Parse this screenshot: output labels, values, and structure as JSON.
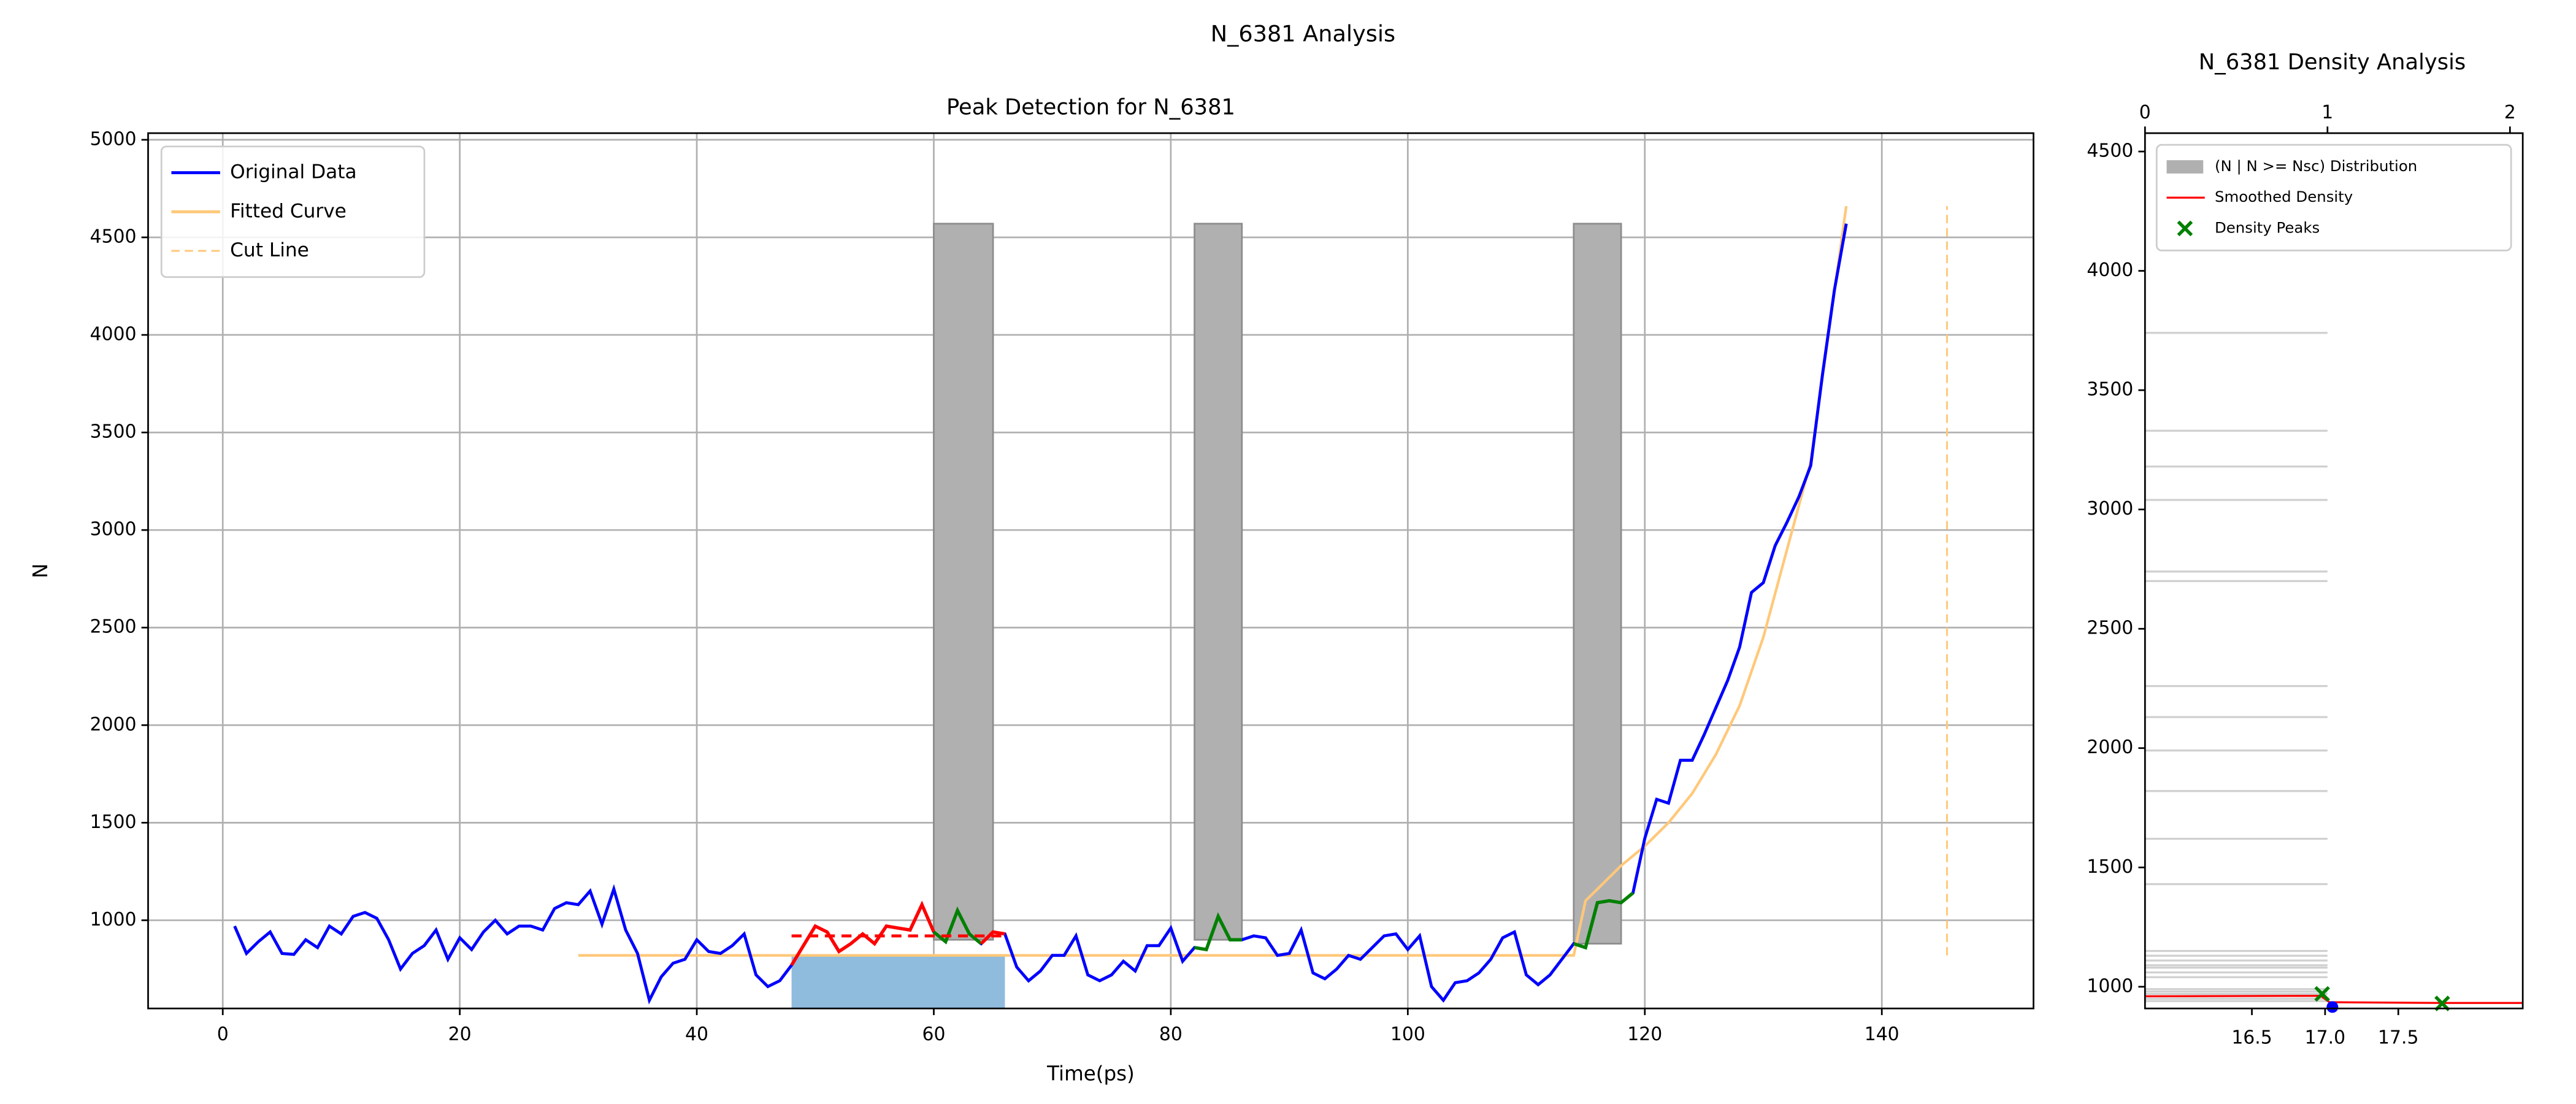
{
  "title": "N_6381 Analysis",
  "chart_data": [
    {
      "type": "line",
      "title": "Peak Detection for N_6381",
      "xlabel": "Time(ps)",
      "ylabel": "N",
      "xlim": [
        -6.3,
        152.8
      ],
      "ylim": [
        548,
        5034
      ],
      "xticks": [
        0,
        20,
        40,
        60,
        80,
        100,
        120,
        140
      ],
      "yticks": [
        1000,
        1500,
        2000,
        2500,
        3000,
        3500,
        4000,
        4500,
        5000
      ],
      "grid": true,
      "legend": "upper left",
      "series": [
        {
          "name": "Original Data",
          "color": "#0000ff",
          "style": "solid",
          "x": [
            1,
            2,
            3,
            4,
            5,
            6,
            7,
            8,
            9,
            10,
            11,
            12,
            13,
            14,
            15,
            16,
            17,
            18,
            19,
            20,
            21,
            22,
            23,
            24,
            25,
            26,
            27,
            28,
            29,
            30,
            31,
            32,
            33,
            34,
            35,
            36,
            37,
            38,
            39,
            40,
            41,
            42,
            43,
            44,
            45,
            46,
            47,
            48,
            49,
            50,
            51,
            52,
            53,
            54,
            55,
            56,
            57,
            58,
            59,
            60,
            61,
            62,
            63,
            64,
            65,
            66,
            67,
            68,
            69,
            70,
            71,
            72,
            73,
            74,
            75,
            76,
            77,
            78,
            79,
            80,
            81,
            82,
            83,
            84,
            85,
            86,
            87,
            88,
            89,
            90,
            91,
            92,
            93,
            94,
            95,
            96,
            97,
            98,
            99,
            100,
            101,
            102,
            103,
            104,
            105,
            106,
            107,
            108,
            109,
            110,
            111,
            112,
            113,
            114,
            115,
            116,
            117,
            118,
            119,
            120,
            121,
            122,
            123,
            124,
            125,
            126,
            127,
            128,
            129,
            130,
            131,
            132,
            133,
            134,
            135,
            136,
            137
          ],
          "values": [
            970,
            830,
            890,
            940,
            830,
            825,
            900,
            860,
            970,
            930,
            1020,
            1040,
            1010,
            900,
            750,
            830,
            870,
            950,
            800,
            910,
            850,
            940,
            1000,
            930,
            970,
            970,
            950,
            1060,
            1090,
            1080,
            1150,
            980,
            1160,
            950,
            830,
            590,
            710,
            780,
            800,
            900,
            840,
            830,
            870,
            930,
            720,
            660,
            690,
            770,
            870,
            970,
            940,
            840,
            880,
            930,
            880,
            970,
            960,
            950,
            1080,
            940,
            890,
            1050,
            930,
            880,
            940,
            930,
            760,
            690,
            740,
            820,
            820,
            920,
            720,
            690,
            720,
            790,
            740,
            870,
            870,
            960,
            790,
            860,
            850,
            1020,
            900,
            900,
            920,
            910,
            820,
            830,
            950,
            730,
            700,
            750,
            820,
            800,
            860,
            920,
            930,
            850,
            920,
            660,
            590,
            680,
            690,
            730,
            800,
            910,
            940,
            720,
            670,
            720,
            800,
            880,
            860,
            1090,
            1100,
            1090,
            1140,
            1420,
            1620,
            1600,
            1820,
            1820,
            1950,
            2090,
            2230,
            2400,
            2680,
            2730,
            2920,
            3040,
            3170,
            3330,
            3800,
            4230,
            4570
          ]
        },
        {
          "name": "Fitted Curve",
          "color": "#ffc87a",
          "style": "solid",
          "x": [
            30,
            114,
            115,
            116,
            118,
            120,
            122,
            124,
            126,
            128,
            130,
            132,
            134,
            137
          ],
          "values": [
            820,
            820,
            1100,
            1160,
            1280,
            1380,
            1500,
            1650,
            1850,
            2100,
            2450,
            2900,
            3350,
            4660
          ]
        },
        {
          "name": "Cut Line",
          "color": "#ffc87a",
          "style": "dashed",
          "x": [
            145.5,
            145.5
          ],
          "values": [
            820,
            4660
          ]
        }
      ],
      "highlights": [
        {
          "color": "#ff0000",
          "x": [
            48,
            60
          ]
        },
        {
          "color": "#008000",
          "x": [
            60,
            64
          ]
        },
        {
          "color": "#ff0000",
          "x": [
            64,
            66
          ]
        },
        {
          "color": "#008000",
          "x": [
            82,
            86
          ]
        },
        {
          "color": "#008000",
          "x": [
            114,
            119
          ]
        }
      ],
      "threshold": {
        "color": "#ff0000",
        "x": [
          48,
          66
        ],
        "value": 920
      },
      "region": {
        "color": "#8fbbdd",
        "x": [
          48,
          66
        ],
        "top": 820
      },
      "bars": {
        "color": "#b0b0b0",
        "items": [
          {
            "x": [
              60,
              65
            ],
            "y": [
              900,
              4570
            ]
          },
          {
            "x": [
              82,
              86
            ],
            "y": [
              900,
              4570
            ]
          },
          {
            "x": [
              114,
              118
            ],
            "y": [
              880,
              4570
            ]
          }
        ]
      }
    },
    {
      "type": "density",
      "title": "N_6381 Density Analysis",
      "xlim": [
        15.77,
        18.35
      ],
      "xticks": [
        16.5,
        {
          "value": 17,
          "label": "17.0"
        },
        17.5
      ],
      "top_xlim": [
        0,
        2.07
      ],
      "top_xticks": [
        0,
        1,
        2
      ],
      "ylim": [
        909,
        4577
      ],
      "yticks": [
        1000,
        1500,
        2000,
        2500,
        3000,
        3500,
        4000,
        4500
      ],
      "legend": "upper left",
      "distribution": {
        "name": "(N | N >= Nsc) Distribution",
        "color": "#b0b0b0",
        "y": [
          3740,
          3330,
          3180,
          3040,
          2740,
          2700,
          2260,
          2130,
          1990,
          1820,
          1620,
          1430,
          1150,
          1130,
          1110,
          1090,
          1080,
          1060,
          1040,
          990,
          980,
          970,
          950,
          940
        ],
        "counts": [
          1,
          1,
          1,
          1,
          1,
          1,
          1,
          1,
          1,
          1,
          1,
          1,
          1,
          1,
          1,
          1,
          1,
          1,
          1,
          1,
          1,
          1,
          1,
          1
        ]
      },
      "smoothed": {
        "name": "Smoothed Density",
        "color": "#ff0000",
        "x": [
          15.77,
          16.97,
          17.03,
          17.8,
          18.35
        ],
        "y": [
          960,
          962,
          935,
          932,
          932
        ]
      },
      "peaks": {
        "name": "Density Peaks",
        "color": "#008000",
        "x": [
          16.98,
          17.8
        ],
        "y": [
          970,
          930
        ]
      },
      "points": {
        "color": "#0000ff",
        "x": [
          17.05
        ],
        "y": [
          915
        ]
      }
    }
  ]
}
